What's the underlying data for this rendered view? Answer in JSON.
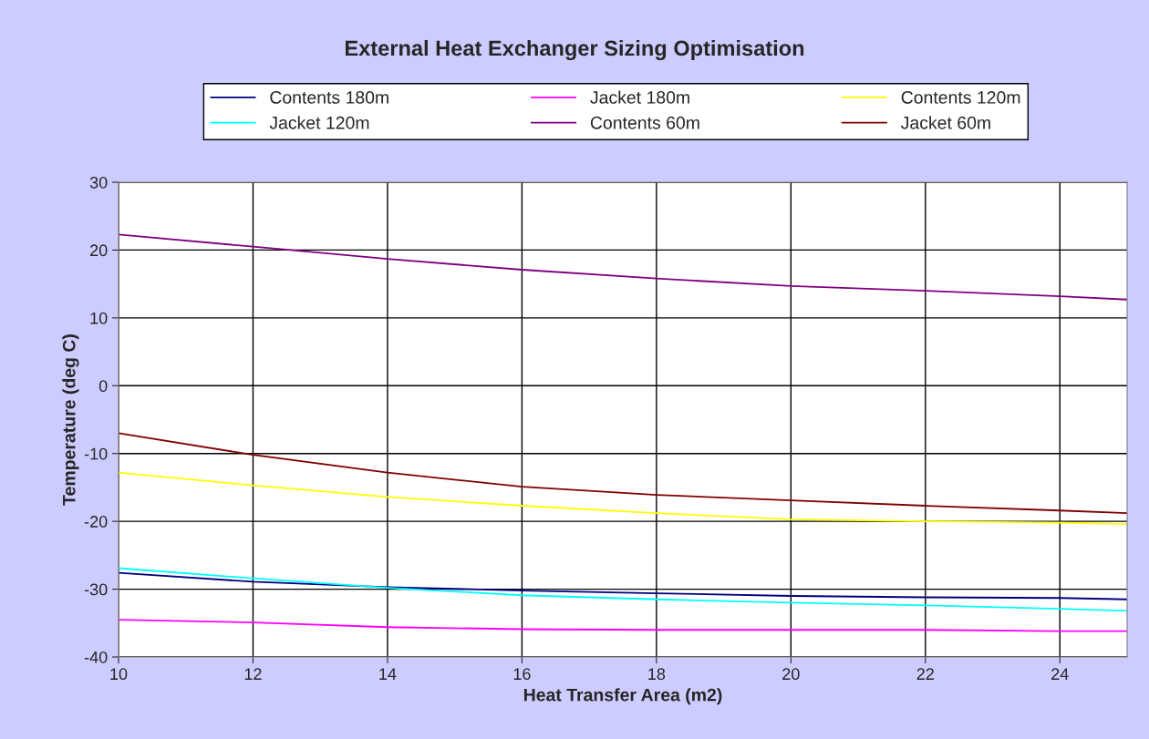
{
  "chart_data": {
    "type": "line",
    "title": "External Heat Exchanger Sizing Optimisation",
    "xlabel": "Heat Transfer Area (m2)",
    "ylabel": "Temperature (deg C)",
    "x": [
      10,
      12,
      14,
      16,
      18,
      20,
      22,
      24,
      25
    ],
    "series": [
      {
        "name": "Contents 180m",
        "color": "#000080",
        "values": [
          -27.6,
          -28.9,
          -29.7,
          -30.2,
          -30.6,
          -31.0,
          -31.2,
          -31.3,
          -31.5
        ]
      },
      {
        "name": "Jacket 180m",
        "color": "#ff00ff",
        "values": [
          -34.5,
          -34.9,
          -35.6,
          -35.9,
          -36.0,
          -36.0,
          -36.0,
          -36.2,
          -36.2
        ]
      },
      {
        "name": "Contents 120m",
        "color": "#ffff00",
        "values": [
          -12.8,
          -14.7,
          -16.4,
          -17.7,
          -18.8,
          -19.7,
          -20.0,
          -20.2,
          -20.4
        ]
      },
      {
        "name": "Jacket 120m",
        "color": "#00ffff",
        "values": [
          -26.9,
          -28.4,
          -29.8,
          -30.9,
          -31.5,
          -32.0,
          -32.4,
          -32.9,
          -33.2
        ]
      },
      {
        "name": "Contents 60m",
        "color": "#800080",
        "values": [
          22.3,
          20.5,
          18.7,
          17.1,
          15.8,
          14.7,
          14.0,
          13.2,
          12.7
        ]
      },
      {
        "name": "Jacket 60m",
        "color": "#800000",
        "values": [
          -7.0,
          -10.2,
          -12.8,
          -14.9,
          -16.1,
          -16.9,
          -17.7,
          -18.4,
          -18.8
        ]
      }
    ],
    "xlim": [
      10,
      25
    ],
    "xticks": [
      10,
      12,
      14,
      16,
      18,
      20,
      22,
      24
    ],
    "ylim": [
      -40,
      30
    ],
    "yticks": [
      -40,
      -30,
      -20,
      -10,
      0,
      10,
      20,
      30
    ],
    "grid": true,
    "legend": "top",
    "marker": "none",
    "line_style": "solid"
  }
}
